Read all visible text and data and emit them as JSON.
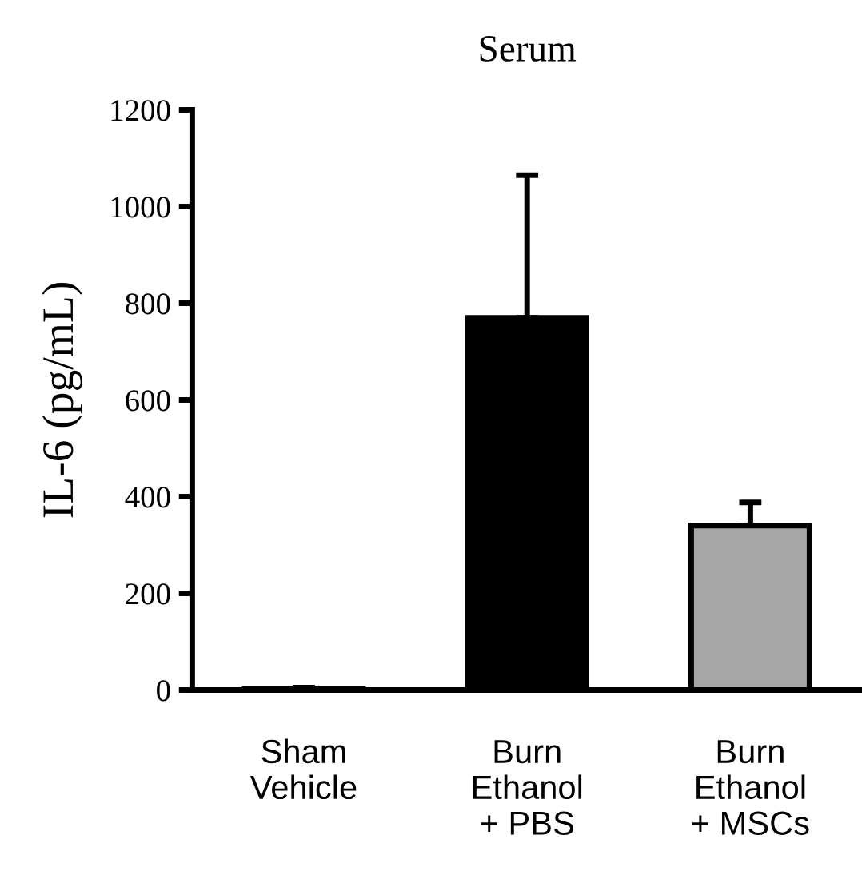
{
  "chart_data": {
    "type": "bar",
    "title": "Serum",
    "ylabel": "IL-6 (pg/mL)",
    "categories": [
      "Sham\nVehicle",
      "Burn\nEthanol\n+ PBS",
      "Burn\nEthanol\n+ MSCs"
    ],
    "values": [
      3,
      770,
      340
    ],
    "errors": [
      2,
      295,
      48
    ],
    "colors": [
      "#ffffff",
      "#000000",
      "#a6a6a6"
    ],
    "ylim": [
      0,
      1200
    ],
    "yticks": [
      0,
      200,
      400,
      600,
      800,
      1000,
      1200
    ],
    "grid": false
  }
}
